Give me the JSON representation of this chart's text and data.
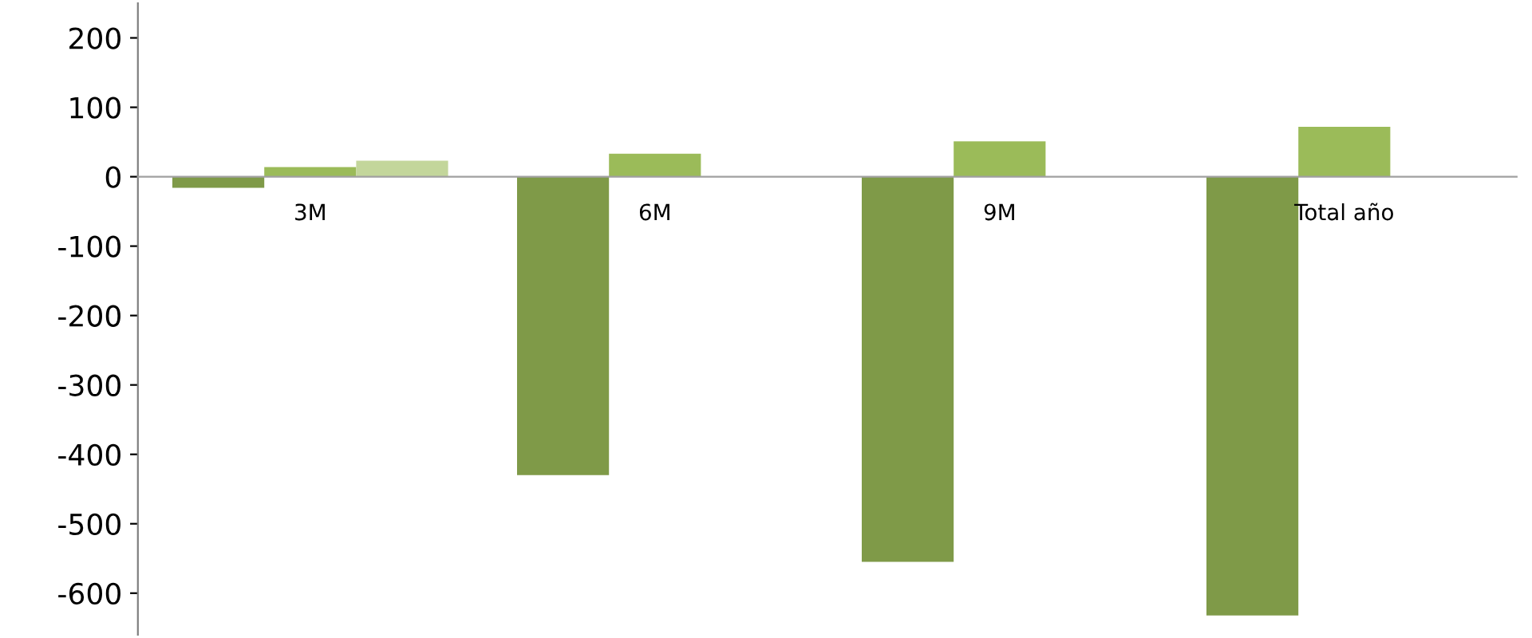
{
  "chart_data": {
    "type": "bar",
    "categories": [
      "3M",
      "6M",
      "9M",
      "Total año"
    ],
    "series": [
      {
        "color": "#7f9a48",
        "values": [
          -16,
          -430,
          -555,
          -632
        ]
      },
      {
        "color": "#9bbb59",
        "values": [
          14,
          33,
          51,
          72
        ]
      },
      {
        "color": "#c3d69b",
        "values": [
          23,
          null,
          null,
          null
        ]
      }
    ],
    "ylim": [
      -660,
      250
    ],
    "yticks": [
      -600,
      -500,
      -400,
      -300,
      -200,
      -100,
      0,
      100,
      200
    ],
    "grid": false,
    "legend": false
  }
}
